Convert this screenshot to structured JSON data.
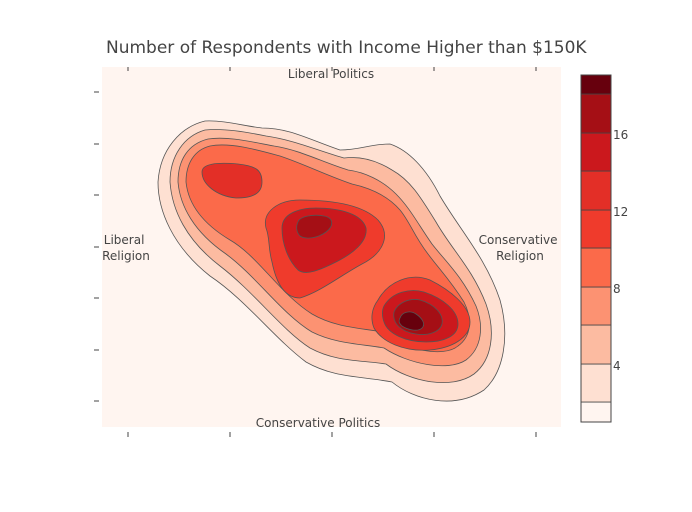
{
  "chart_data": {
    "type": "contour",
    "title": "Number of Respondents with Income Higher than $150K",
    "colorscale": [
      "#fff5f0",
      "#fee0d2",
      "#fcbba1",
      "#fc9272",
      "#fb6a4a",
      "#ef3b2c",
      "#e32f27",
      "#cb181d",
      "#a50f15",
      "#67000d"
    ],
    "plot_background": "#fff5f0",
    "contour_levels": [
      2,
      4,
      6,
      8,
      10,
      12,
      14,
      16,
      18
    ],
    "colorbar": {
      "tick_labels": [
        "4",
        "8",
        "12",
        "16"
      ],
      "tick_values": [
        4,
        8,
        12,
        16
      ],
      "range": [
        0,
        18
      ]
    },
    "annotations": {
      "top": "Liberal Politics",
      "bottom": "Conservative Politics",
      "left": "Liberal\nReligion",
      "right": "Conservative\nReligion"
    },
    "x_ticks_count": 5,
    "y_ticks_count": 7,
    "peaks": [
      {
        "name": "upper-left",
        "x": -0.75,
        "y": 0.65,
        "value": 14
      },
      {
        "name": "center",
        "x": -0.05,
        "y": 0.2,
        "value": 15
      },
      {
        "name": "lower-right",
        "x": 0.8,
        "y": -0.55,
        "value": 18
      }
    ]
  }
}
